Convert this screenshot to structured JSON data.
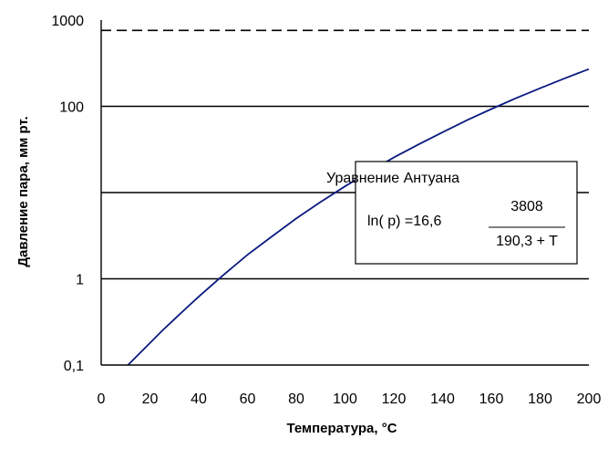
{
  "chart_data": {
    "type": "line",
    "title": "",
    "xlabel": "Температура, °С",
    "ylabel": "Давление пара, мм рт.",
    "xlim": [
      0,
      200
    ],
    "ylim": [
      0.1,
      1000
    ],
    "y_scale": "log",
    "x_ticks": [
      "0",
      "20",
      "40",
      "60",
      "80",
      "100",
      "120",
      "140",
      "160",
      "180",
      "200"
    ],
    "y_ticks": [
      "0,1",
      "1",
      "100",
      "1000"
    ],
    "y_tick_values": [
      0.1,
      1,
      100,
      1000
    ],
    "horizontal_lines": [
      1,
      10,
      100
    ],
    "reference_line": {
      "y": 760,
      "style": "dashed"
    },
    "grid": false,
    "legend": "none",
    "colors": {
      "curve": "#0a1a80",
      "gridlines": "#000000",
      "reference_line": "#000000"
    },
    "series": [
      {
        "x": [
          11,
          15,
          20,
          25,
          30,
          35,
          40,
          50,
          60,
          70,
          80,
          90,
          100,
          110,
          120,
          130,
          140,
          150,
          160,
          170,
          180,
          190,
          200
        ],
        "values": [
          0.1,
          0.13,
          0.18,
          0.25,
          0.34,
          0.46,
          0.62,
          1.1,
          1.9,
          3.1,
          5.0,
          7.8,
          11.8,
          17.5,
          25.5,
          36,
          50,
          69,
          93,
          124,
          162,
          211,
          270
        ]
      }
    ],
    "annotations": {
      "title": "Уравнение Антуана",
      "lhs": "ln( p) =16,6",
      "numerator": "3808",
      "denominator": "190,3 + T"
    }
  }
}
